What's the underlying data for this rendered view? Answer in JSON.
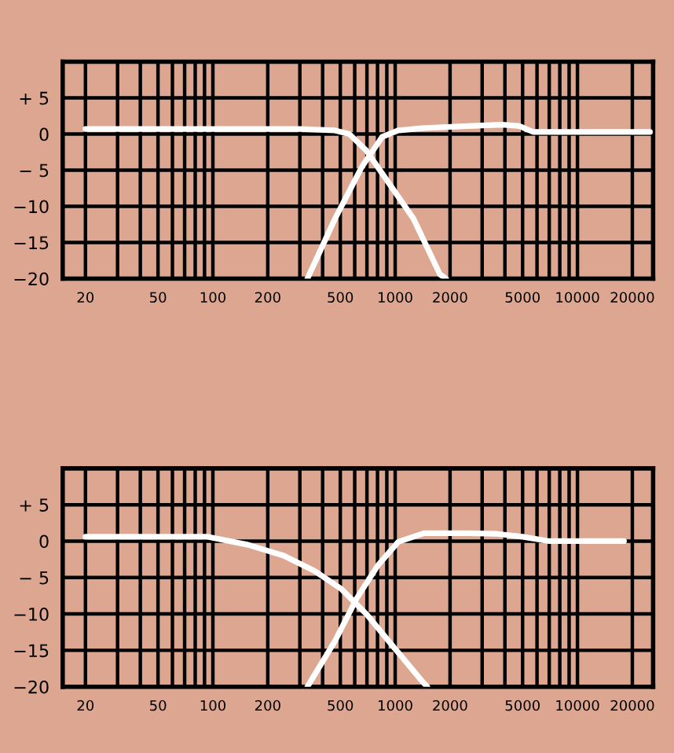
{
  "chart_data": [
    {
      "type": "line",
      "xlim": [
        15,
        26000
      ],
      "ylim": [
        -20,
        10
      ],
      "log": "x",
      "grid": true,
      "line_style": "solid",
      "xticks": [
        20,
        50,
        100,
        200,
        500,
        1000,
        2000,
        5000,
        10000,
        20000
      ],
      "yticks": [
        {
          "value": 5,
          "label": "+ 5"
        },
        0,
        {
          "value": -5,
          "label": "− 5"
        },
        {
          "value": -10,
          "label": "−10"
        },
        {
          "value": -15,
          "label": "−15"
        },
        {
          "value": -20,
          "label": "−20"
        }
      ],
      "series": [
        {
          "color": "#ffffff",
          "x": [
            20,
            100,
            300,
            468,
            560,
            696,
            918,
            1260,
            1760,
            1900
          ],
          "values": [
            0.7,
            0.7,
            0.7,
            0.5,
            0,
            -2.3,
            -6.7,
            -11.7,
            -19.4,
            -20
          ]
        },
        {
          "color": "#ffffff",
          "x": [
            330,
            468,
            658,
            848,
            1040,
            1400,
            2500,
            3880,
            4800,
            5700,
            10000,
            25000
          ],
          "values": [
            -20,
            -11.7,
            -4.5,
            -0.4,
            0.5,
            0.8,
            1.1,
            1.3,
            1.1,
            0.3,
            0.3,
            0.3
          ]
        }
      ]
    },
    {
      "type": "line",
      "xlim": [
        15,
        26000
      ],
      "ylim": [
        -20,
        10
      ],
      "log": "x",
      "grid": true,
      "line_style": "solid",
      "xticks": [
        20,
        50,
        100,
        200,
        500,
        1000,
        2000,
        5000,
        10000,
        20000
      ],
      "yticks": [
        {
          "value": 5,
          "label": "+ 5"
        },
        0,
        {
          "value": -5,
          "label": "− 5"
        },
        {
          "value": -10,
          "label": "−10"
        },
        {
          "value": -15,
          "label": "−15"
        },
        {
          "value": -20,
          "label": "−20"
        }
      ],
      "series": [
        {
          "color": "#ffffff",
          "x": [
            20,
            50,
            94,
            156,
            245,
            362,
            508,
            700,
            970,
            1390,
            1500
          ],
          "values": [
            0.6,
            0.6,
            0.6,
            -0.5,
            -2.0,
            -4.1,
            -6.6,
            -10.1,
            -14.4,
            -19.1,
            -20
          ]
        },
        {
          "color": "#ffffff",
          "x": [
            330,
            468,
            614,
            800,
            1040,
            1440,
            2500,
            3630,
            5000,
            7000,
            12000,
            18000
          ],
          "values": [
            -20,
            -13.7,
            -7.9,
            -3.4,
            -0.1,
            1.1,
            1.1,
            1.0,
            0.6,
            0,
            0,
            0
          ]
        }
      ]
    }
  ]
}
